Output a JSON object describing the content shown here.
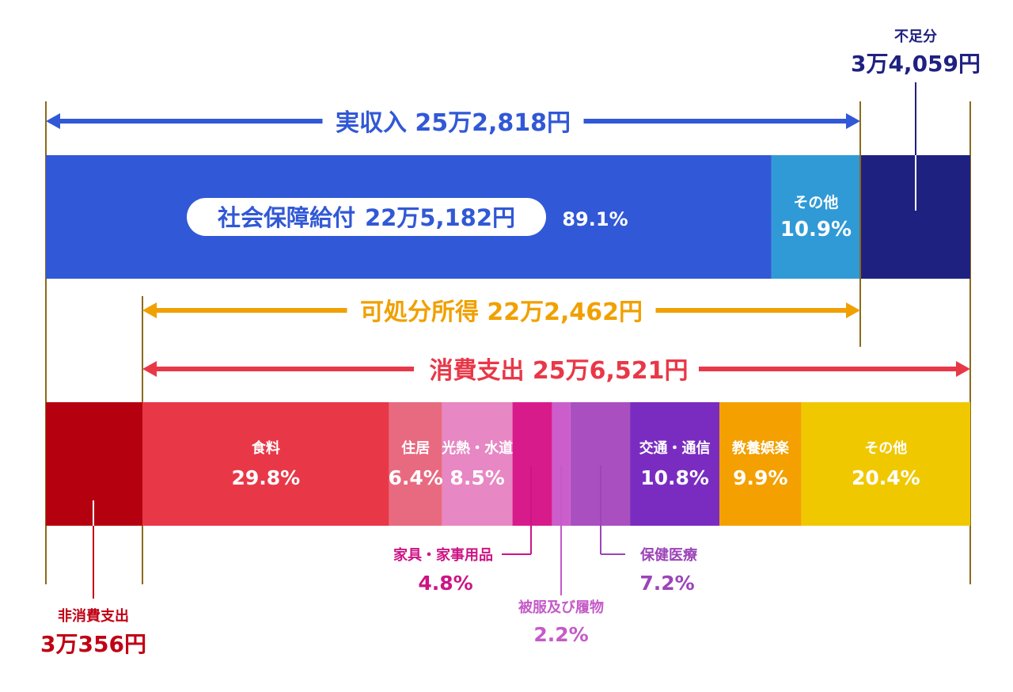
{
  "chart_data": [
    {
      "type": "bar",
      "orientation": "horizontal-stacked",
      "bracket_label": "実収入 25万2,818円",
      "segments": [
        {
          "name": "社会保障給付",
          "amount_label": "22万5,182円",
          "percent_label": "89.1%",
          "percent": 89.1,
          "color": "#3158d6",
          "text_color": "#ffffff"
        },
        {
          "name": "その他",
          "percent_label": "10.9%",
          "percent": 10.9,
          "color": "#2f9ad6",
          "text_color": "#ffffff"
        },
        {
          "name": "不足分",
          "amount_label": "3万4,059円",
          "percent": 13.5,
          "color": "#1f2180",
          "text_color": "#1f2180",
          "callout": true
        }
      ]
    },
    {
      "type": "bar",
      "orientation": "horizontal-stacked",
      "bracket_label": "消費支出 25万6,521円",
      "segments": [
        {
          "name": "非消費支出",
          "amount_label": "3万356円",
          "percent": 11.8,
          "color": "#b5000f",
          "text_color": "#c00014",
          "callout": true
        },
        {
          "name": "食料",
          "percent_label": "29.8%",
          "percent": 29.8,
          "color": "#e83848",
          "text_color": "#ffffff"
        },
        {
          "name": "住居",
          "percent_label": "6.4%",
          "percent": 6.4,
          "color": "#e86a80",
          "text_color": "#ffffff"
        },
        {
          "name": "光熱・水道",
          "percent_label": "8.5%",
          "percent": 8.5,
          "color": "#e787c3",
          "text_color": "#ffffff"
        },
        {
          "name": "家具・家事用品",
          "percent_label": "4.8%",
          "percent": 4.8,
          "color": "#d81b8a",
          "text_color": "#cc1585",
          "callout": true
        },
        {
          "name": "被服及び履物",
          "percent_label": "2.2%",
          "percent": 2.2,
          "color": "#cc5ecc",
          "text_color": "#c45ac8",
          "callout": true
        },
        {
          "name": "保健医療",
          "percent_label": "7.2%",
          "percent": 7.2,
          "color": "#a94fc0",
          "text_color": "#9c44b8",
          "callout": true
        },
        {
          "name": "交通・通信",
          "percent_label": "10.8%",
          "percent": 10.8,
          "color": "#7a2cc0",
          "text_color": "#ffffff"
        },
        {
          "name": "教養娯楽",
          "percent_label": "9.9%",
          "percent": 9.9,
          "color": "#f3a000",
          "text_color": "#ffffff"
        },
        {
          "name": "その他",
          "percent_label": "20.4%",
          "percent": 20.4,
          "color": "#f0c800",
          "text_color": "#ffffff"
        }
      ]
    }
  ],
  "disposable_income": {
    "label": "可処分所得 22万2,462円",
    "color": "#f0a000"
  },
  "colors": {
    "income_arrow": "#3158d6",
    "spending_arrow": "#e83848",
    "guide_line": "#8b6a1a",
    "background": "#ffffff"
  }
}
